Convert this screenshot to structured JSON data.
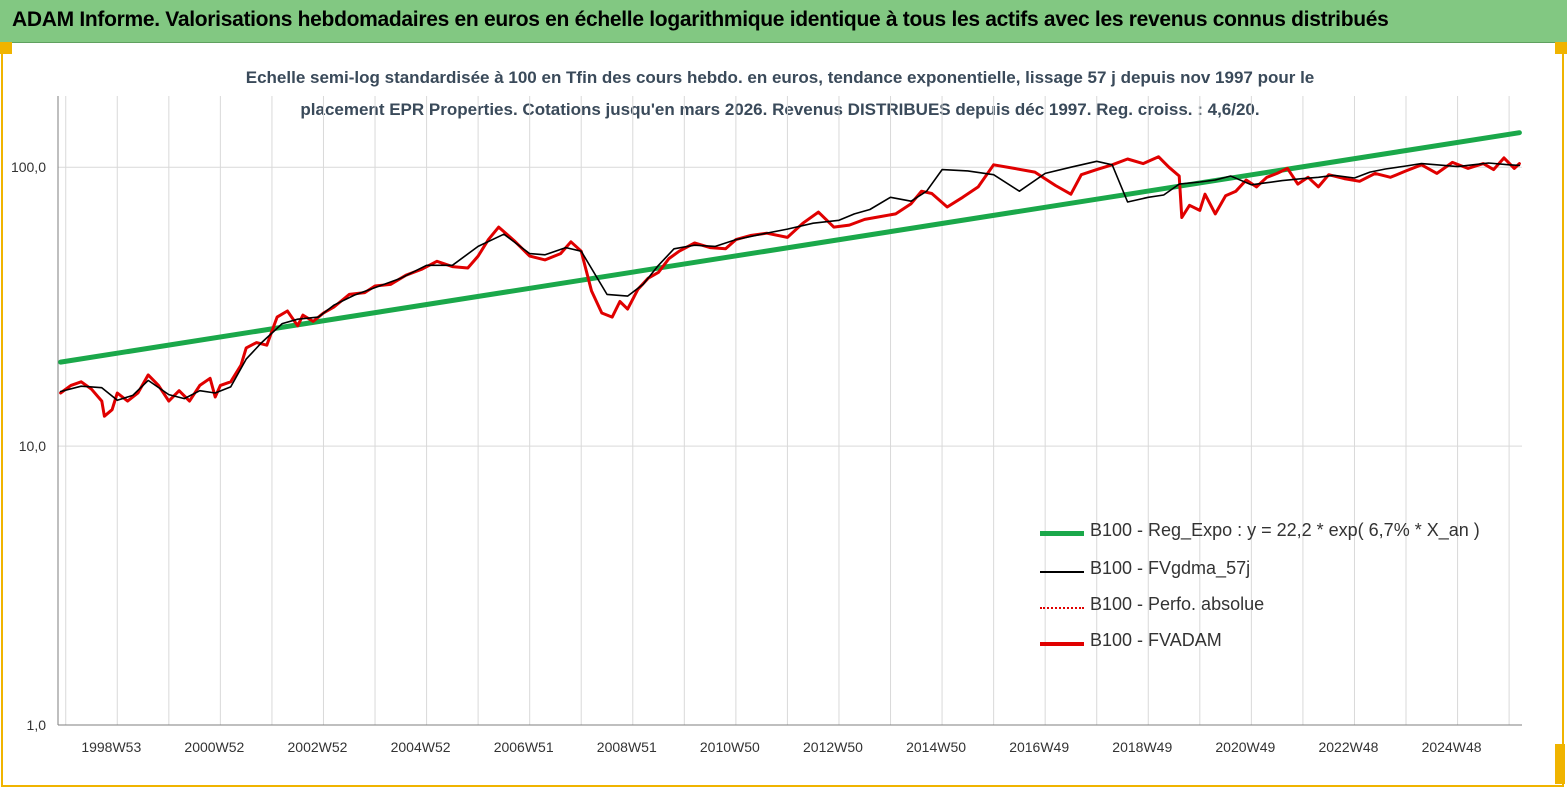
{
  "banner": {
    "title": "ADAM Informe. Valorisations hebdomadaires en euros en échelle logarithmique identique à tous les actifs avec les revenus connus distribués"
  },
  "subtitle": {
    "line1": "Echelle semi-log standardisée à 100 en Tfin des cours hebdo. en euros, tendance exponentielle, lissage 57 j depuis nov 1997 pour le",
    "line2": "placement EPR Properties. Cotations jusqu'en mars 2026. Revenus DISTRIBUES depuis déc 1997. Reg. croiss. : 4,6/20."
  },
  "colors": {
    "banner": "#82c882",
    "frame": "#f0b400",
    "regression": "#1aa84a",
    "smoothed": "#000000",
    "absolute": "#e00000",
    "fvadam": "#e00000",
    "grid": "#d9d9d9",
    "axis": "#7f7f7f"
  },
  "chart_data": {
    "type": "line",
    "y_scale": "log",
    "ylim": [
      1,
      180
    ],
    "xlim": [
      1997.85,
      2026.25
    ],
    "y_ticks": [
      {
        "value": 1,
        "label": "1,0"
      },
      {
        "value": 10,
        "label": "10,0"
      },
      {
        "value": 100,
        "label": "100,0"
      }
    ],
    "x_ticks": [
      {
        "value": 1999.0,
        "label": "1998W53"
      },
      {
        "value": 2001.0,
        "label": "2000W52"
      },
      {
        "value": 2003.0,
        "label": "2002W52"
      },
      {
        "value": 2005.0,
        "label": "2004W52"
      },
      {
        "value": 2007.0,
        "label": "2006W51"
      },
      {
        "value": 2009.0,
        "label": "2008W51"
      },
      {
        "value": 2011.0,
        "label": "2010W50"
      },
      {
        "value": 2013.0,
        "label": "2012W50"
      },
      {
        "value": 2015.0,
        "label": "2014W50"
      },
      {
        "value": 2017.0,
        "label": "2016W49"
      },
      {
        "value": 2019.0,
        "label": "2018W49"
      },
      {
        "value": 2021.0,
        "label": "2020W49"
      },
      {
        "value": 2023.0,
        "label": "2022W48"
      },
      {
        "value": 2025.0,
        "label": "2024W48"
      }
    ],
    "vertical_grid": [
      1998.0,
      1999.0,
      2000.0,
      2001.0,
      2002.0,
      2003.0,
      2004.0,
      2005.0,
      2006.0,
      2007.0,
      2008.0,
      2009.0,
      2010.0,
      2011.0,
      2012.0,
      2013.0,
      2014.0,
      2015.0,
      2016.0,
      2017.0,
      2018.0,
      2019.0,
      2020.0,
      2021.0,
      2022.0,
      2023.0,
      2024.0,
      2025.0,
      2026.0
    ],
    "series": [
      {
        "key": "reg",
        "name": "B100 - Reg_Expo : y = 22,2 * exp( 6,7% *  X_an )",
        "x": [
          1997.9,
          2026.2
        ],
        "y": [
          20.0,
          133.0
        ]
      },
      {
        "key": "smooth",
        "name": "B100 - FVgdma_57j",
        "x": [
          1997.9,
          1998.3,
          1998.7,
          1999.0,
          1999.3,
          1999.6,
          2000.0,
          2000.3,
          2000.6,
          2000.9,
          2001.2,
          2001.5,
          2001.8,
          2002.2,
          2002.5,
          2002.9,
          2003.2,
          2003.6,
          2004.0,
          2004.5,
          2005.0,
          2005.5,
          2006.0,
          2006.5,
          2007.0,
          2007.3,
          2007.7,
          2008.0,
          2008.5,
          2008.9,
          2009.2,
          2009.5,
          2009.8,
          2010.2,
          2010.6,
          2011.0,
          2011.5,
          2012.0,
          2012.5,
          2013.0,
          2013.3,
          2013.6,
          2014.0,
          2014.4,
          2014.7,
          2015.0,
          2015.5,
          2016.0,
          2016.5,
          2017.0,
          2017.5,
          2018.0,
          2018.3,
          2018.6,
          2019.0,
          2019.3,
          2019.6,
          2020.0,
          2020.3,
          2020.6,
          2021.0,
          2021.3,
          2021.6,
          2022.0,
          2022.3,
          2022.6,
          2023.0,
          2023.3,
          2023.6,
          2024.0,
          2024.3,
          2024.6,
          2025.0,
          2025.3,
          2025.6,
          2026.0,
          2026.2
        ],
        "y": [
          15.7,
          16.4,
          16.2,
          14.6,
          15.2,
          17.2,
          15.3,
          14.8,
          15.8,
          15.5,
          16.3,
          20.5,
          23.5,
          27.5,
          28.5,
          29.0,
          32.0,
          34.8,
          37.0,
          40.0,
          44.5,
          44.5,
          52.0,
          57.5,
          49.0,
          48.5,
          51.5,
          50.0,
          35.0,
          34.5,
          38.0,
          44.5,
          51.0,
          52.5,
          52.0,
          55.0,
          57.5,
          60.0,
          63.0,
          64.5,
          68.0,
          70.5,
          78.0,
          75.5,
          82.0,
          98.0,
          97.0,
          94.0,
          82.0,
          95.0,
          100.0,
          105.0,
          102.0,
          75.0,
          78.0,
          79.5,
          87.0,
          88.5,
          90.0,
          93.0,
          86.5,
          88.0,
          89.5,
          91.0,
          92.0,
          93.5,
          91.5,
          96.0,
          98.5,
          101.0,
          103.0,
          102.0,
          100.5,
          102.0,
          103.5,
          102.0,
          101.5
        ]
      },
      {
        "key": "absolute",
        "name": "B100 - Perfo. absolue",
        "x": [],
        "y": []
      },
      {
        "key": "fvadam",
        "name": "B100 - FVADAM",
        "x": [
          1997.9,
          1998.1,
          1998.3,
          1998.5,
          1998.7,
          1998.75,
          1998.9,
          1999.0,
          1999.2,
          1999.4,
          1999.6,
          1999.8,
          2000.0,
          2000.2,
          2000.4,
          2000.6,
          2000.8,
          2000.9,
          2001.0,
          2001.2,
          2001.4,
          2001.5,
          2001.7,
          2001.9,
          2002.1,
          2002.3,
          2002.5,
          2002.6,
          2002.8,
          2003.0,
          2003.2,
          2003.5,
          2003.8,
          2004.0,
          2004.3,
          2004.6,
          2004.9,
          2005.2,
          2005.5,
          2005.8,
          2006.0,
          2006.2,
          2006.4,
          2006.7,
          2007.0,
          2007.3,
          2007.6,
          2007.8,
          2008.0,
          2008.2,
          2008.4,
          2008.6,
          2008.75,
          2008.9,
          2009.1,
          2009.3,
          2009.5,
          2009.7,
          2009.9,
          2010.2,
          2010.5,
          2010.8,
          2011.0,
          2011.3,
          2011.6,
          2012.0,
          2012.3,
          2012.6,
          2012.9,
          2013.2,
          2013.5,
          2013.8,
          2014.1,
          2014.4,
          2014.6,
          2014.8,
          2015.1,
          2015.4,
          2015.7,
          2016.0,
          2016.4,
          2016.8,
          2017.2,
          2017.5,
          2017.7,
          2018.0,
          2018.3,
          2018.6,
          2018.9,
          2019.2,
          2019.4,
          2019.6,
          2019.65,
          2019.8,
          2020.0,
          2020.1,
          2020.3,
          2020.5,
          2020.7,
          2020.9,
          2021.1,
          2021.3,
          2021.5,
          2021.7,
          2021.9,
          2022.1,
          2022.3,
          2022.5,
          2022.8,
          2023.1,
          2023.4,
          2023.7,
          2024.0,
          2024.3,
          2024.6,
          2024.9,
          2025.2,
          2025.5,
          2025.7,
          2025.9,
          2026.1,
          2026.2
        ],
        "y": [
          15.5,
          16.5,
          17.0,
          16.0,
          14.5,
          12.8,
          13.5,
          15.5,
          14.5,
          15.5,
          18.0,
          16.5,
          14.5,
          15.8,
          14.5,
          16.5,
          17.5,
          15.0,
          16.5,
          17.0,
          19.5,
          22.5,
          23.5,
          23.0,
          29.0,
          30.5,
          27.0,
          29.5,
          28.0,
          30.0,
          31.5,
          35.0,
          35.5,
          37.5,
          38.0,
          41.0,
          43.0,
          46.0,
          44.0,
          43.5,
          48.0,
          55.0,
          61.0,
          54.5,
          48.0,
          46.5,
          49.0,
          54.0,
          50.0,
          36.0,
          30.0,
          29.0,
          33.0,
          31.0,
          36.5,
          40.0,
          42.0,
          47.0,
          50.0,
          53.5,
          51.5,
          51.0,
          55.0,
          57.0,
          58.0,
          56.0,
          63.0,
          69.0,
          61.0,
          62.0,
          65.0,
          66.5,
          68.0,
          74.0,
          82.0,
          80.5,
          72.0,
          78.0,
          85.0,
          102.0,
          99.0,
          96.0,
          86.0,
          80.0,
          94.0,
          98.0,
          102.0,
          107.0,
          103.0,
          109.0,
          100.0,
          93.0,
          66.0,
          73.0,
          70.0,
          80.0,
          68.0,
          79.0,
          82.0,
          90.0,
          85.0,
          92.0,
          95.0,
          99.0,
          87.0,
          92.0,
          85.0,
          94.0,
          91.0,
          89.0,
          95.0,
          92.0,
          97.0,
          102.0,
          95.0,
          104.0,
          99.0,
          103.0,
          98.0,
          108.0,
          99.0,
          103.0
        ]
      }
    ]
  },
  "legend": {
    "items": [
      {
        "key": "reg",
        "label": "B100 - Reg_Expo : y = 22,2 * exp( 6,7% *  X_an )"
      },
      {
        "key": "smooth",
        "label": "B100 - FVgdma_57j"
      },
      {
        "key": "absolute",
        "label": "B100 - Perfo. absolue"
      },
      {
        "key": "fvadam",
        "label": "B100 - FVADAM"
      }
    ]
  }
}
